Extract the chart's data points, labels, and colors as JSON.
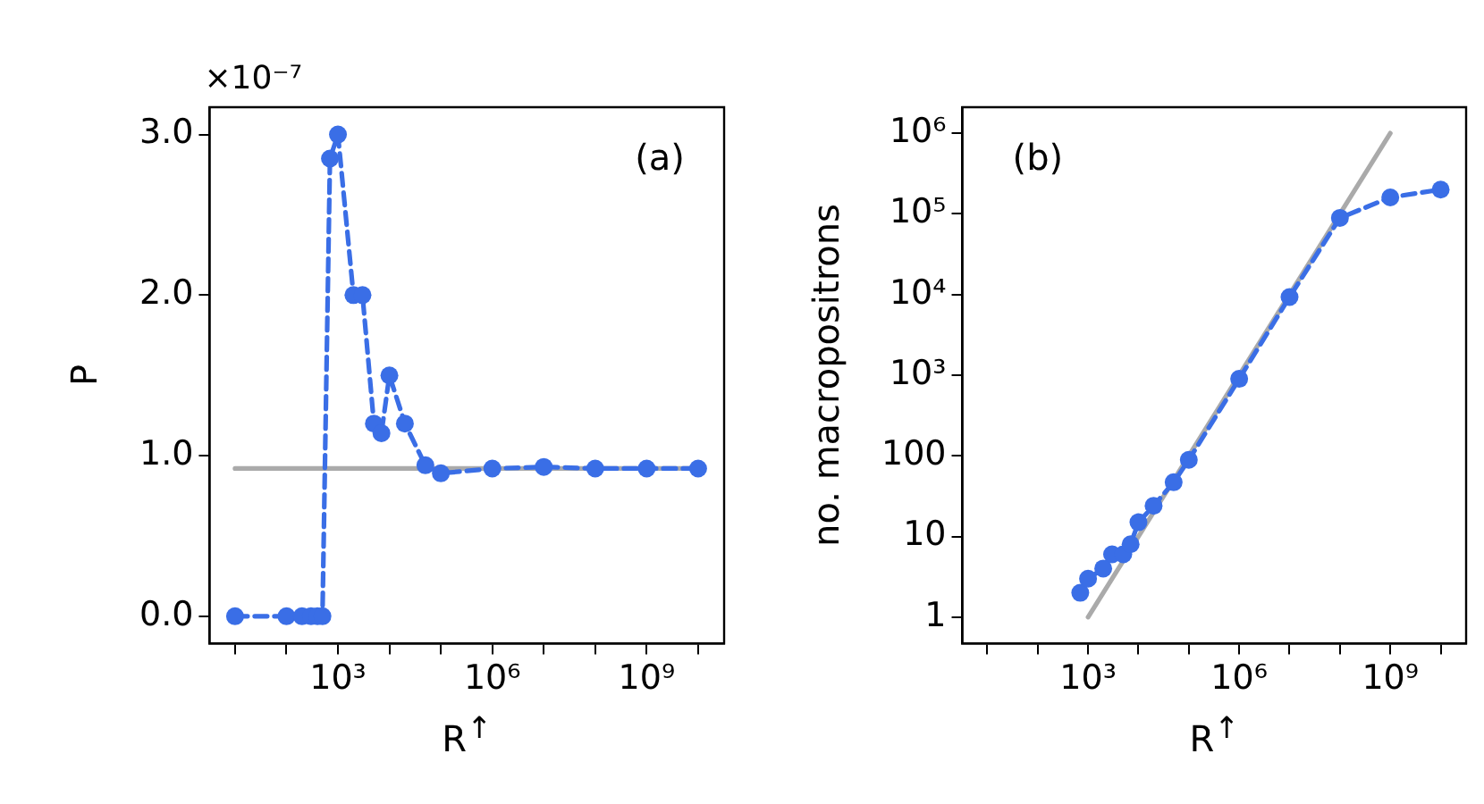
{
  "chart_data": [
    {
      "type": "line",
      "xlabel": "R$^{↑}$",
      "ylabel": "P",
      "annotations": [
        "(a)",
        "×10⁻⁷"
      ],
      "log": "x",
      "grid": false,
      "legend": false,
      "xlim": [
        3.2,
        32000000000.0
      ],
      "xticks": [
        {
          "value": 10,
          "label": null
        },
        {
          "value": 100,
          "label": null
        },
        {
          "value": 1000,
          "label": "10³"
        },
        {
          "value": 10000,
          "label": null
        },
        {
          "value": 100000,
          "label": null
        },
        {
          "value": 1000000,
          "label": "10⁶"
        },
        {
          "value": 10000000,
          "label": null
        },
        {
          "value": 100000000,
          "label": null
        },
        {
          "value": 1000000000,
          "label": "10⁹"
        },
        {
          "value": 10000000000,
          "label": null
        }
      ],
      "ylim": [
        -0.17,
        3.17
      ],
      "yticks": [
        {
          "value": 0,
          "label": "0.0"
        },
        {
          "value": 1,
          "label": "1.0"
        },
        {
          "value": 2,
          "label": "2.0"
        },
        {
          "value": 3,
          "label": "3.0"
        }
      ],
      "series": [
        {
          "color": "#3a6ee6",
          "line_style": "dashed",
          "marker": "circle",
          "x": [
            10,
            100,
            200,
            300,
            400,
            500,
            700,
            1000,
            2000,
            3000,
            5000,
            7000,
            10000,
            20000,
            50000,
            100000,
            1000000,
            10000000,
            100000000,
            1000000000,
            10000000000
          ],
          "values": [
            0,
            0,
            0,
            0,
            0,
            0,
            2.85,
            3.0,
            2.0,
            2.0,
            1.2,
            1.14,
            1.5,
            1.2,
            0.94,
            0.89,
            0.92,
            0.93,
            0.92,
            0.92,
            0.92
          ]
        },
        {
          "color": "#aaaaaa",
          "line_style": "solid",
          "marker": "none",
          "x": [
            10,
            10000000000
          ],
          "values": [
            0.92,
            0.92
          ]
        }
      ]
    },
    {
      "type": "line",
      "xlabel": "R$^{↑}$",
      "ylabel": "no. macropositrons",
      "annotations": [
        "(b)"
      ],
      "log": "xy",
      "grid": false,
      "legend": false,
      "xlim": [
        3.2,
        32000000000.0
      ],
      "xticks": [
        {
          "value": 10,
          "label": null
        },
        {
          "value": 100,
          "label": null
        },
        {
          "value": 1000,
          "label": "10³"
        },
        {
          "value": 10000,
          "label": null
        },
        {
          "value": 100000,
          "label": null
        },
        {
          "value": 1000000,
          "label": "10⁶"
        },
        {
          "value": 10000000,
          "label": null
        },
        {
          "value": 100000000,
          "label": null
        },
        {
          "value": 1000000000,
          "label": "10⁹"
        },
        {
          "value": 10000000000,
          "label": null
        }
      ],
      "ylim": [
        0.47,
        2100000
      ],
      "yticks": [
        1,
        10,
        100,
        {
          "value": 1000,
          "label": "10³"
        },
        {
          "value": 10000,
          "label": "10⁴"
        },
        {
          "value": 100000,
          "label": "10⁵"
        },
        {
          "value": 1000000,
          "label": "10⁶"
        }
      ],
      "series": [
        {
          "color": "#3a6ee6",
          "line_style": "dashed",
          "marker": "circle",
          "x": [
            700,
            1000,
            2000,
            3000,
            5000,
            7000,
            10000,
            20000,
            50000,
            100000,
            1000000,
            10000000,
            100000000,
            1000000000,
            10000000000
          ],
          "values": [
            2,
            3,
            4,
            6,
            6,
            8,
            15,
            24,
            47,
            89,
            900,
            9300,
            89000,
            160000,
            200000
          ]
        },
        {
          "color": "#aaaaaa",
          "line_style": "solid",
          "marker": "none",
          "x": [
            1000,
            1000000000
          ],
          "values": [
            1,
            1000000
          ]
        }
      ]
    }
  ]
}
